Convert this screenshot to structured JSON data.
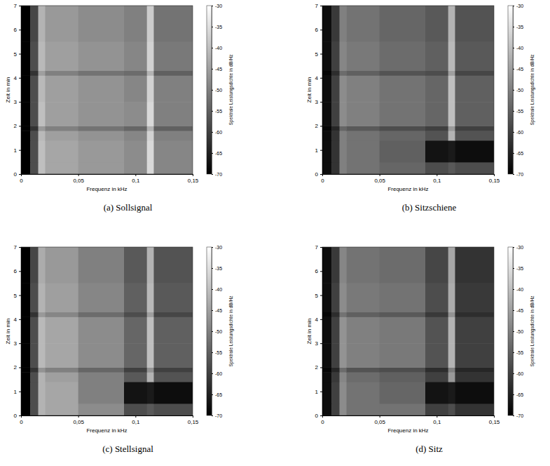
{
  "chart_data": [
    {
      "type": "heatmap",
      "title": "(a) Sollsignal",
      "x_label": "Frequenz in kHz",
      "y_label": "Zeit in min",
      "xlim": [
        0,
        0.15
      ],
      "ylim": [
        0,
        7
      ],
      "xticks": [
        0,
        {
          "value": 0.05,
          "label": "0,05"
        },
        {
          "value": 0.1,
          "label": "0,1"
        },
        {
          "value": 0.15,
          "label": "0,15"
        }
      ],
      "yticks": [
        0,
        1,
        2,
        3,
        4,
        5,
        6,
        7
      ],
      "x_bins": [
        0,
        0.008,
        0.015,
        0.021,
        0.05,
        0.09,
        0.11,
        0.116,
        0.15
      ],
      "y_bins": [
        0,
        0.5,
        1.4,
        1.8,
        2.0,
        3,
        4.1,
        4.3,
        5.5,
        7
      ],
      "values": [
        [
          -70,
          -58,
          -40,
          -44,
          -46,
          -48,
          -36,
          -49
        ],
        [
          -70,
          -58,
          -40,
          -44,
          -46,
          -48,
          -36,
          -49
        ],
        [
          -70,
          -58,
          -41,
          -45,
          -47,
          -49,
          -37,
          -50
        ],
        [
          -70,
          -62,
          -46,
          -50,
          -52,
          -54,
          -42,
          -55
        ],
        [
          -70,
          -58,
          -40,
          -45,
          -47,
          -48,
          -36,
          -50
        ],
        [
          -70,
          -58,
          -41,
          -45,
          -47,
          -49,
          -37,
          -50
        ],
        [
          -70,
          -62,
          -45,
          -50,
          -52,
          -53,
          -42,
          -55
        ],
        [
          -70,
          -58,
          -41,
          -45,
          -47,
          -49,
          -37,
          -51
        ],
        [
          -70,
          -59,
          -42,
          -46,
          -48,
          -50,
          -38,
          -52
        ]
      ],
      "colorbar_label": "Spektrale Leistungsdichte in dB/Hz",
      "colorbar_range": [
        -70,
        -30
      ],
      "colorbar_ticks": [
        -70,
        -65,
        -60,
        -55,
        -50,
        -45,
        -40,
        -35,
        -30
      ]
    },
    {
      "type": "heatmap",
      "title": "(b) Sitzschiene",
      "x_label": "Frequenz in kHz",
      "y_label": "Zeit in min",
      "xlim": [
        0,
        0.15
      ],
      "ylim": [
        0,
        7
      ],
      "xticks": [
        0,
        {
          "value": 0.05,
          "label": "0,05"
        },
        {
          "value": 0.1,
          "label": "0,1"
        },
        {
          "value": 0.15,
          "label": "0,15"
        }
      ],
      "yticks": [
        0,
        1,
        2,
        3,
        4,
        5,
        6,
        7
      ],
      "x_bins": [
        0,
        0.008,
        0.015,
        0.021,
        0.05,
        0.09,
        0.11,
        0.116,
        0.15
      ],
      "y_bins": [
        0,
        0.5,
        1.4,
        1.8,
        2.0,
        3,
        4.1,
        4.3,
        5.5,
        7
      ],
      "values": [
        [
          -68,
          -62,
          -50,
          -52,
          -54,
          -58,
          -56,
          -58
        ],
        [
          -68,
          -62,
          -50,
          -52,
          -55,
          -67,
          -66,
          -68
        ],
        [
          -68,
          -62,
          -50,
          -52,
          -54,
          -57,
          -42,
          -57
        ],
        [
          -69,
          -64,
          -54,
          -56,
          -58,
          -60,
          -46,
          -60
        ],
        [
          -68,
          -60,
          -48,
          -50,
          -52,
          -54,
          -40,
          -55
        ],
        [
          -68,
          -60,
          -48,
          -50,
          -52,
          -54,
          -40,
          -55
        ],
        [
          -69,
          -63,
          -53,
          -55,
          -57,
          -58,
          -45,
          -59
        ],
        [
          -68,
          -60,
          -49,
          -51,
          -53,
          -55,
          -41,
          -56
        ],
        [
          -68,
          -61,
          -50,
          -52,
          -54,
          -56,
          -42,
          -57
        ]
      ],
      "colorbar_label": "Spektrale Leistungsdichte in dB/Hz",
      "colorbar_range": [
        -70,
        -30
      ],
      "colorbar_ticks": [
        -70,
        -65,
        -60,
        -55,
        -50,
        -45,
        -40,
        -35,
        -30
      ]
    },
    {
      "type": "heatmap",
      "title": "(c) Stellsignal",
      "x_label": "Frequenz in kHz",
      "y_label": "Zeit in min",
      "xlim": [
        0,
        0.15
      ],
      "ylim": [
        0,
        7
      ],
      "xticks": [
        0,
        {
          "value": 0.05,
          "label": "0,05"
        },
        {
          "value": 0.1,
          "label": "0,1"
        },
        {
          "value": 0.15,
          "label": "0,15"
        }
      ],
      "yticks": [
        0,
        1,
        2,
        3,
        4,
        5,
        6,
        7
      ],
      "x_bins": [
        0,
        0.008,
        0.015,
        0.021,
        0.05,
        0.09,
        0.11,
        0.116,
        0.15
      ],
      "y_bins": [
        0,
        0.5,
        1.4,
        1.8,
        2.0,
        3,
        4.1,
        4.3,
        5.5,
        7
      ],
      "values": [
        [
          -70,
          -58,
          -42,
          -44,
          -48,
          -58,
          -56,
          -58
        ],
        [
          -70,
          -58,
          -42,
          -44,
          -50,
          -67,
          -66,
          -68
        ],
        [
          -70,
          -58,
          -42,
          -45,
          -50,
          -56,
          -42,
          -57
        ],
        [
          -70,
          -62,
          -47,
          -50,
          -54,
          -60,
          -47,
          -60
        ],
        [
          -70,
          -58,
          -41,
          -44,
          -48,
          -54,
          -40,
          -55
        ],
        [
          -70,
          -58,
          -41,
          -44,
          -48,
          -54,
          -40,
          -55
        ],
        [
          -70,
          -62,
          -46,
          -49,
          -53,
          -58,
          -45,
          -59
        ],
        [
          -70,
          -58,
          -42,
          -45,
          -49,
          -55,
          -41,
          -56
        ],
        [
          -70,
          -59,
          -43,
          -46,
          -50,
          -56,
          -42,
          -57
        ]
      ],
      "colorbar_label": "Spektrale Leistungsdichte in dB/Hz",
      "colorbar_range": [
        -70,
        -30
      ],
      "colorbar_ticks": [
        -70,
        -65,
        -60,
        -55,
        -50,
        -45,
        -40,
        -35,
        -30
      ]
    },
    {
      "type": "heatmap",
      "title": "(d) Sitz",
      "x_label": "Frequenz in kHz",
      "y_label": "Zeit in min",
      "xlim": [
        0,
        0.15
      ],
      "ylim": [
        0,
        7
      ],
      "xticks": [
        0,
        {
          "value": 0.05,
          "label": "0,05"
        },
        {
          "value": 0.1,
          "label": "0,1"
        },
        {
          "value": 0.15,
          "label": "0,15"
        }
      ],
      "yticks": [
        0,
        1,
        2,
        3,
        4,
        5,
        6,
        7
      ],
      "x_bins": [
        0,
        0.008,
        0.015,
        0.021,
        0.05,
        0.09,
        0.11,
        0.116,
        0.15
      ],
      "y_bins": [
        0,
        0.5,
        1.4,
        1.8,
        2.0,
        3,
        4.1,
        4.3,
        5.5,
        7
      ],
      "values": [
        [
          -68,
          -60,
          -48,
          -52,
          -52,
          -60,
          -58,
          -62
        ],
        [
          -68,
          -60,
          -48,
          -52,
          -54,
          -67,
          -66,
          -68
        ],
        [
          -68,
          -61,
          -49,
          -53,
          -55,
          -60,
          -46,
          -62
        ],
        [
          -69,
          -64,
          -53,
          -57,
          -58,
          -63,
          -50,
          -64
        ],
        [
          -68,
          -60,
          -47,
          -50,
          -51,
          -57,
          -42,
          -60
        ],
        [
          -68,
          -60,
          -47,
          -50,
          -51,
          -57,
          -42,
          -60
        ],
        [
          -69,
          -63,
          -52,
          -55,
          -56,
          -61,
          -47,
          -63
        ],
        [
          -68,
          -60,
          -48,
          -51,
          -52,
          -58,
          -43,
          -61
        ],
        [
          -68,
          -61,
          -49,
          -52,
          -53,
          -59,
          -44,
          -62
        ]
      ],
      "colorbar_label": "Spektrale Leistungsdichte in dB/Hz",
      "colorbar_range": [
        -70,
        -30
      ],
      "colorbar_ticks": [
        -70,
        -65,
        -60,
        -55,
        -50,
        -45,
        -40,
        -35,
        -30
      ]
    }
  ]
}
